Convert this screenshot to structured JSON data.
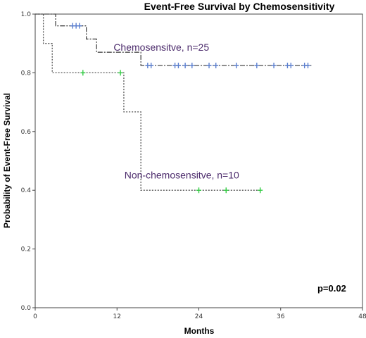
{
  "chart_data": {
    "type": "line",
    "title": "Event-Free Survival by Chemosensitivity",
    "xlabel": "Months",
    "ylabel": "Probability of Event-Free Survival",
    "xlim": [
      0,
      48
    ],
    "ylim": [
      0,
      1.0
    ],
    "x_ticks": [
      0,
      12,
      24,
      36,
      48
    ],
    "y_ticks": [
      0.0,
      0.2,
      0.4,
      0.6,
      0.8,
      1.0
    ],
    "x_tick_labels": [
      "0",
      "12",
      "24",
      "36",
      "48"
    ],
    "y_tick_labels": [
      "0.0",
      "0.2",
      "0.4",
      "0.6",
      "0.8",
      "1.0"
    ],
    "grid": false,
    "series": [
      {
        "name": "Chemosensitve, n=25",
        "color": "#4a4a4a",
        "censor_color": "#5b7fd0",
        "steps": [
          [
            0,
            1.0
          ],
          [
            3,
            0.96
          ],
          [
            7.5,
            0.915
          ],
          [
            9,
            0.87
          ],
          [
            15.5,
            0.825
          ],
          [
            40.5,
            0.825
          ]
        ],
        "censored": [
          [
            5.5,
            0.96
          ],
          [
            6,
            0.96
          ],
          [
            6.5,
            0.96
          ],
          [
            16.5,
            0.825
          ],
          [
            17,
            0.825
          ],
          [
            20.5,
            0.825
          ],
          [
            21,
            0.825
          ],
          [
            22,
            0.825
          ],
          [
            23,
            0.825
          ],
          [
            25.5,
            0.825
          ],
          [
            26.5,
            0.825
          ],
          [
            29.5,
            0.825
          ],
          [
            32.5,
            0.825
          ],
          [
            35,
            0.825
          ],
          [
            37,
            0.825
          ],
          [
            37.5,
            0.825
          ],
          [
            39.5,
            0.825
          ],
          [
            40,
            0.825
          ]
        ]
      },
      {
        "name": "Non-chemosensitve, n=10",
        "color": "#555555",
        "censor_color": "#33cc44",
        "steps": [
          [
            0,
            1.0
          ],
          [
            1.2,
            0.9
          ],
          [
            2.5,
            0.8
          ],
          [
            13,
            0.667
          ],
          [
            15.5,
            0.4
          ],
          [
            33,
            0.4
          ]
        ],
        "censored": [
          [
            7,
            0.8
          ],
          [
            12.5,
            0.8
          ],
          [
            24,
            0.4
          ],
          [
            28,
            0.4
          ],
          [
            33,
            0.4
          ]
        ]
      }
    ],
    "annotations": [
      {
        "text": "Chemosensitve, n=25",
        "x": 18.5,
        "y": 0.875,
        "color": "#4b2a6b"
      },
      {
        "text": "Non-chemosensitve, n=10",
        "x": 21.5,
        "y": 0.44,
        "color": "#4b2a6b"
      },
      {
        "text": "p=0.02",
        "x": 43.5,
        "y": 0.055,
        "color": "#000000"
      }
    ]
  }
}
